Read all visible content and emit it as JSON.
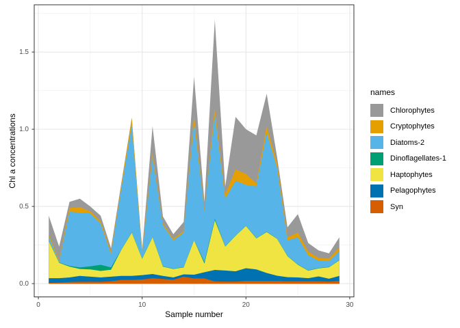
{
  "figure": {
    "y_axis_title": "Chl a concentrations",
    "x_axis_title": "Sample number",
    "legend_title": "names"
  },
  "chart_data": {
    "type": "area",
    "stacked": true,
    "title": "",
    "xlabel": "Sample number",
    "ylabel": "Chl a concentrations",
    "grid": true,
    "legend_position": "right",
    "legend_title": "names",
    "x_domain": [
      -0.4,
      30.4
    ],
    "y_domain": [
      -0.086,
      1.806
    ],
    "x_ticks_major": [
      0,
      10,
      20,
      30
    ],
    "x_ticks_minor": [
      5,
      15,
      25
    ],
    "y_ticks_major": [
      0,
      0.5,
      1.0,
      1.5
    ],
    "y_ticks_minor": [
      0.25,
      0.75,
      1.25,
      1.75
    ],
    "x_tick_labels": [
      "0",
      "10",
      "20",
      "30"
    ],
    "y_tick_labels": [
      "0.0",
      "0.5",
      "1.0",
      "1.5"
    ],
    "x": [
      1,
      2,
      3,
      4,
      5,
      6,
      7,
      8,
      9,
      10,
      11,
      12,
      13,
      14,
      15,
      16,
      17,
      18,
      19,
      20,
      21,
      22,
      23,
      24,
      25,
      26,
      27,
      28,
      29
    ],
    "stack_order": "bottom-to-top",
    "series": [
      {
        "name": "Syn",
        "color": "#D55E00",
        "values": [
          0.005,
          0.007,
          0.01,
          0.012,
          0.012,
          0.012,
          0.015,
          0.024,
          0.024,
          0.027,
          0.035,
          0.03,
          0.025,
          0.045,
          0.034,
          0.034,
          0.014,
          0.013,
          0.013,
          0.017,
          0.017,
          0.017,
          0.017,
          0.015,
          0.015,
          0.015,
          0.015,
          0.013,
          0.018
        ]
      },
      {
        "name": "Pelagophytes",
        "color": "#0072B2",
        "values": [
          0.03,
          0.028,
          0.03,
          0.038,
          0.033,
          0.028,
          0.03,
          0.026,
          0.026,
          0.028,
          0.027,
          0.02,
          0.015,
          0.015,
          0.024,
          0.04,
          0.075,
          0.072,
          0.067,
          0.083,
          0.075,
          0.052,
          0.034,
          0.027,
          0.025,
          0.02,
          0.032,
          0.019,
          0.032
        ]
      },
      {
        "name": "Haptophytes",
        "color": "#F0E442",
        "values": [
          0.24,
          0.1,
          0.07,
          0.045,
          0.047,
          0.042,
          0.045,
          0.17,
          0.28,
          0.105,
          0.238,
          0.06,
          0.055,
          0.045,
          0.222,
          0.056,
          0.321,
          0.155,
          0.23,
          0.273,
          0.201,
          0.265,
          0.239,
          0.136,
          0.082,
          0.049,
          0.052,
          0.074,
          0.101
        ]
      },
      {
        "name": "Dinoflagellates-1",
        "color": "#009E73",
        "values": [
          0.002,
          0.002,
          0.005,
          0.01,
          0.02,
          0.04,
          0.015,
          0.002,
          0.002,
          0.002,
          0.002,
          0.002,
          0.002,
          0.002,
          0.002,
          0.01,
          0.01,
          0.002,
          0.002,
          0.002,
          0.002,
          0.002,
          0.002,
          0.002,
          0.002,
          0.002,
          0.002,
          0.002,
          0.002
        ]
      },
      {
        "name": "Diatoms-2",
        "color": "#56B4E9",
        "values": [
          0.028,
          0.003,
          0.35,
          0.355,
          0.343,
          0.268,
          0.085,
          0.398,
          0.693,
          0.033,
          0.518,
          0.268,
          0.183,
          0.223,
          0.768,
          0.33,
          0.68,
          0.308,
          0.353,
          0.265,
          0.335,
          0.644,
          0.458,
          0.1,
          0.176,
          0.098,
          0.047,
          0.037,
          0.058
        ]
      },
      {
        "name": "Cryptophytes",
        "color": "#E69F00",
        "values": [
          0.015,
          0.008,
          0.025,
          0.035,
          0.013,
          0.015,
          0.015,
          0.02,
          0.045,
          0.015,
          0.025,
          0.01,
          0.01,
          0.01,
          0.04,
          0.01,
          0.035,
          0.025,
          0.075,
          0.07,
          0.02,
          0.04,
          0.03,
          0.02,
          0.03,
          0.023,
          0.018,
          0.017,
          0.022
        ]
      },
      {
        "name": "Chlorophytes",
        "color": "#999999",
        "values": [
          0.12,
          0.092,
          0.04,
          0.055,
          0.032,
          0.035,
          0.025,
          0.015,
          0.005,
          0.01,
          0.175,
          0.045,
          0.03,
          0.06,
          0.25,
          0.05,
          0.575,
          0.055,
          0.34,
          0.29,
          0.31,
          0.21,
          0.04,
          0.065,
          0.12,
          0.056,
          0.049,
          0.034,
          0.067
        ]
      }
    ],
    "style": {
      "panel_background": "#ffffff",
      "panel_border": "#333333",
      "grid_major_color": "#e6e6e6",
      "grid_minor_color": "#f2f2f2",
      "tick_color": "#333333",
      "tick_text_color": "#4d4d4d"
    }
  }
}
